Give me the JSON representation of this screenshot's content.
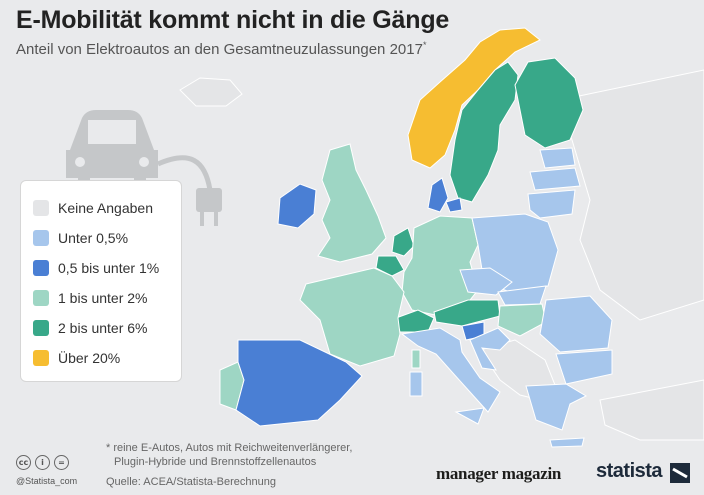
{
  "title": "E-Mobilität kommt nicht in die Gänge",
  "subtitle": "Anteil von Elektroautos an den Gesamtneuzulassungen 2017",
  "subtitle_marker": "*",
  "legend": [
    {
      "key": "none",
      "label": "Keine Angaben",
      "color": "#e4e5e7"
    },
    {
      "key": "lt05",
      "label": "Unter 0,5%",
      "color": "#a6c6ec"
    },
    {
      "key": "b05_1",
      "label": "0,5 bis unter 1%",
      "color": "#4a7fd4"
    },
    {
      "key": "b1_2",
      "label": "1 bis unter 2%",
      "color": "#9ed6c4"
    },
    {
      "key": "b2_6",
      "label": "2 bis unter 6%",
      "color": "#38a889"
    },
    {
      "key": "gt20",
      "label": "Über 20%",
      "color": "#f6bd31"
    }
  ],
  "footnote": {
    "line1": "* reine E-Autos, Autos mit Reichweitenverlängerer,",
    "line2": "Plugin-Hybride und Brennstoffzellenautos"
  },
  "source": "Quelle: ACEA/Statista-Berechnung",
  "handle": "@Statista_com",
  "brands": {
    "publisher": "manager magazin",
    "statista": "statista"
  },
  "map_data": {
    "Norwegen": "gt20",
    "Schweden": "b2_6",
    "Finnland": "b2_6",
    "Dänemark": "b05_1",
    "Irland": "b05_1",
    "Vereinigtes Königreich": "b1_2",
    "Niederlande": "b2_6",
    "Belgien": "b2_6",
    "Frankreich": "b1_2",
    "Deutschland": "b1_2",
    "Schweiz": "b2_6",
    "Österreich": "b2_6",
    "Portugal": "b1_2",
    "Spanien": "b05_1",
    "Italien": "lt05",
    "Slowenien": "b05_1",
    "Polen": "lt05",
    "Tschechien": "lt05",
    "Slowakei": "lt05",
    "Ungarn": "b1_2",
    "Rumänien": "lt05",
    "Bulgarien": "lt05",
    "Griechenland": "lt05",
    "Estland": "lt05",
    "Lettland": "lt05",
    "Litauen": "lt05",
    "Kroatien": "lt05",
    "Island": "none",
    "Balkan": "none",
    "Osteuropa": "none"
  }
}
